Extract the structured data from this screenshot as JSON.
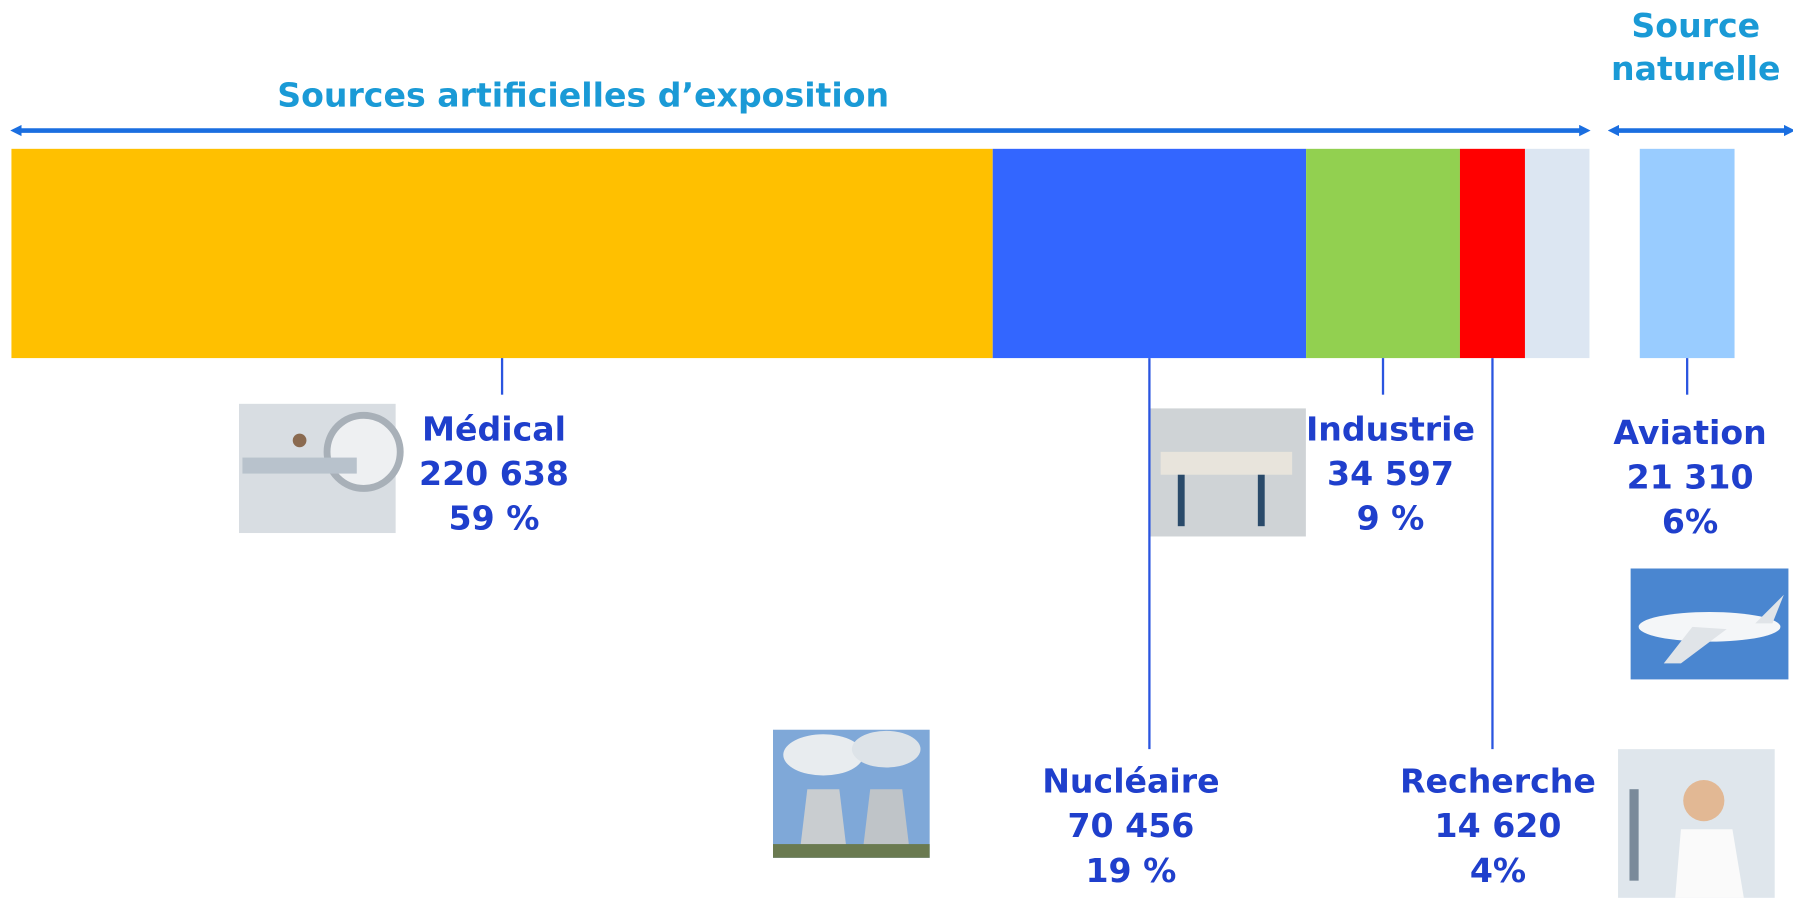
{
  "chart_data": [
    {
      "type": "bar",
      "title": "Sources artificielles d’exposition",
      "categories": [
        "Médical",
        "Nucléaire",
        "Industrie",
        "Recherche",
        null
      ],
      "values": [
        220638,
        70456,
        34597,
        14620,
        14500
      ],
      "value_labels": [
        "220 638",
        "70 456",
        "34 597",
        "14 620",
        null
      ],
      "share_labels": [
        "59 %",
        "19 %",
        "9 %",
        "4%",
        null
      ],
      "colors": [
        "#ffc000",
        "#3366ff",
        "#92d050",
        "#ff0000",
        "#dce6f2"
      ]
    },
    {
      "type": "bar",
      "title": "Source naturelle",
      "categories": [
        "Aviation"
      ],
      "values": [
        21310
      ],
      "value_labels": [
        "21 310"
      ],
      "share_labels": [
        "6%"
      ],
      "colors": [
        "#99ccff"
      ]
    }
  ]
}
